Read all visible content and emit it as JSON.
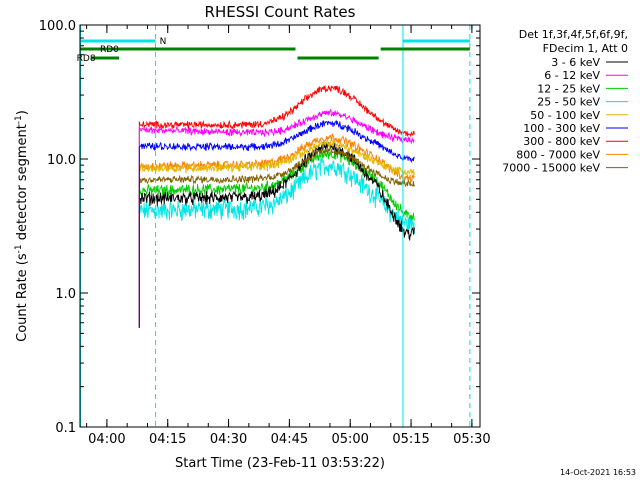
{
  "chart_data": {
    "type": "line",
    "title": "RHESSI Count Rates",
    "xlabel": "Start Time (23-Feb-11 03:53:22)",
    "ylabel_parts": [
      "Count Rate (s",
      "-1",
      " detector segment",
      "-1",
      ")"
    ],
    "y_scale": "log",
    "ylim": [
      0.1,
      100.0
    ],
    "y_ticks": [
      {
        "value": 0.1,
        "label": "0.1"
      },
      {
        "value": 1.0,
        "label": "1.0"
      },
      {
        "value": 10.0,
        "label": "10.0"
      },
      {
        "value": 100.0,
        "label": "100.0"
      }
    ],
    "xlim": [
      "03:53:22",
      "05:32:00"
    ],
    "x_ticks": [
      "04:00",
      "04:15",
      "04:30",
      "04:45",
      "05:00",
      "05:15",
      "05:30"
    ],
    "vertical_markers": [
      "03:53:30",
      "04:12:00",
      "05:13:00",
      "05:29:30"
    ],
    "attenuator_bars": [
      {
        "label": "N",
        "start": "03:53:22",
        "end": "04:12:00",
        "color": "#00e5e5"
      },
      {
        "label": "",
        "start": "05:13:00",
        "end": "05:29:30",
        "color": "#00e5e5"
      }
    ],
    "rd_bars": [
      {
        "label": "RD0",
        "start": "03:53:22",
        "end": "04:46:30",
        "row": 1
      },
      {
        "label": "",
        "start": "04:47:00",
        "end": "05:07:00",
        "row": 2
      },
      {
        "label": "",
        "start": "05:07:30",
        "end": "05:29:30",
        "row": 1
      },
      {
        "label": "RD8",
        "start": "03:56:00",
        "end": "04:03:00",
        "row": 2
      }
    ],
    "rd_color": "#008000",
    "legend_header": [
      "Det 1f,3f,4f,5f,6f,9f,",
      "FDecim 1, Att 0"
    ],
    "data_window": [
      "04:08:00",
      "05:15:50"
    ],
    "peak_time": "04:55:00",
    "series": [
      {
        "name": "3 - 6 keV",
        "color": "#000000",
        "start": 5.1,
        "end": 5.2,
        "peak": 12.5,
        "tail": 2.8,
        "noise": 0.09
      },
      {
        "name": "6 - 12 keV",
        "color": "#ff00ff",
        "start": 16.5,
        "end": 14.5,
        "peak": 22.0,
        "tail": 14.0,
        "noise": 0.05
      },
      {
        "name": "12 - 25 keV",
        "color": "#00cc00",
        "start": 5.8,
        "end": 6.3,
        "peak": 11.0,
        "tail": 3.8,
        "noise": 0.08
      },
      {
        "name": "25 - 50 keV",
        "color": "#00e5e5",
        "start": 4.1,
        "end": 4.6,
        "peak": 9.0,
        "tail": 3.3,
        "noise": 0.14
      },
      {
        "name": "50 - 100 keV",
        "color": "#e5b800",
        "start": 8.5,
        "end": 9.0,
        "peak": 13.0,
        "tail": 8.0,
        "noise": 0.06
      },
      {
        "name": "100 - 300 keV",
        "color": "#0000ff",
        "start": 12.5,
        "end": 12.0,
        "peak": 18.5,
        "tail": 10.0,
        "noise": 0.05
      },
      {
        "name": "300 - 800 keV",
        "color": "#ff0000",
        "start": 18.0,
        "end": 18.0,
        "peak": 34.0,
        "tail": 15.5,
        "noise": 0.05
      },
      {
        "name": "800 - 7000 keV",
        "color": "#ff8000",
        "start": 8.8,
        "end": 9.5,
        "peak": 14.5,
        "tail": 7.2,
        "noise": 0.06
      },
      {
        "name": "7000 - 15000 keV",
        "color": "#806000",
        "start": 7.0,
        "end": 7.2,
        "peak": 11.5,
        "tail": 6.5,
        "noise": 0.05
      }
    ]
  },
  "footer": {
    "date_stamp": "14-Oct-2021 16:53"
  }
}
